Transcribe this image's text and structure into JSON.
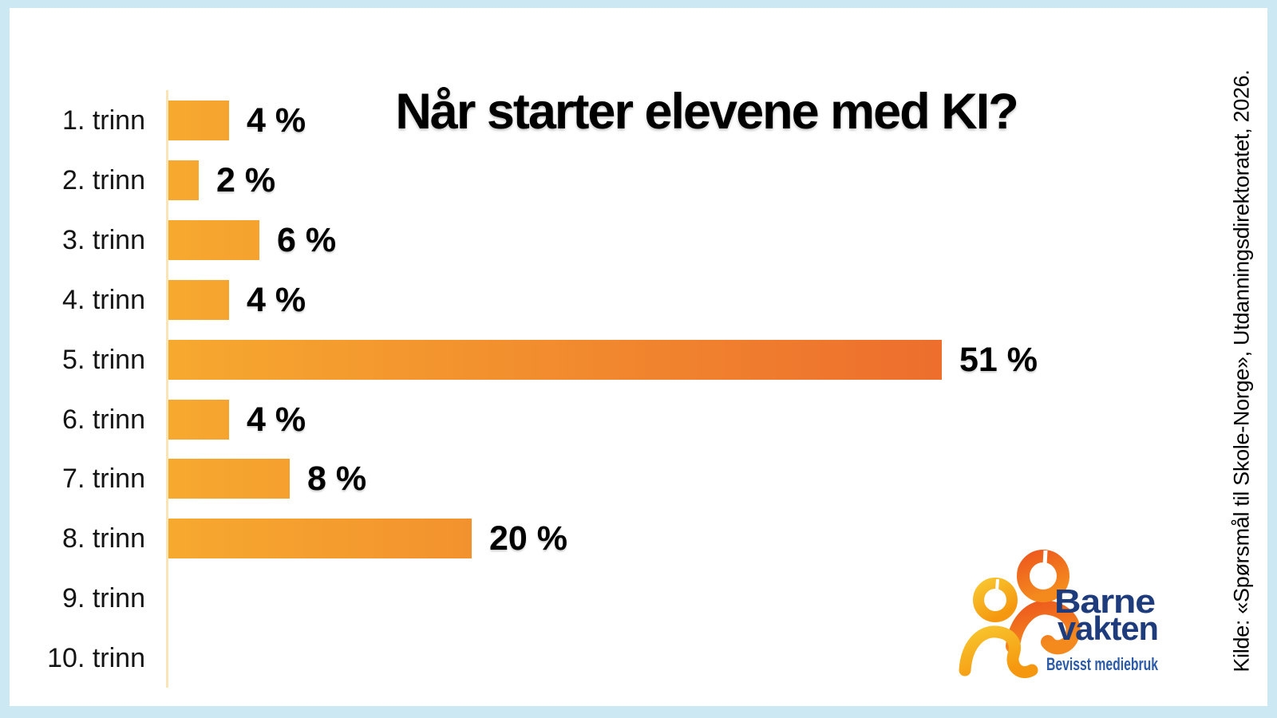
{
  "title": "Når starter elevene med KI?",
  "source": "Kilde: «Spørsmål til Skole-Norge», Utdanningsdirektoratet, 2026.",
  "logo": {
    "name1": "Barne",
    "name2": "vakten",
    "tagline": "Bevisst mediebruk"
  },
  "colors": {
    "frame_blue": "#CBE8F3",
    "panel_white": "#FFFFFF",
    "axis_pale": "#FBE4B6",
    "bar_gradient_start": "#F6A92F",
    "bar_gradient_end": "#ED6E2D",
    "text_black": "#000000",
    "logo_navy": "#1E3C7C",
    "logo_blue": "#2B5AA8",
    "logo_yellow_light": "#F8C52F",
    "logo_yellow_dark": "#F5980F",
    "logo_orange_light": "#ED5A1E",
    "logo_orange_dark": "#F48A1E"
  },
  "chart_data": {
    "type": "bar",
    "orientation": "horizontal",
    "title": "Når starter elevene med KI?",
    "categories": [
      "1. trinn",
      "2. trinn",
      "3. trinn",
      "4. trinn",
      "5. trinn",
      "6. trinn",
      "7. trinn",
      "8. trinn",
      "9. trinn",
      "10. trinn"
    ],
    "values": [
      4,
      2,
      6,
      4,
      51,
      4,
      8,
      20,
      0,
      0
    ],
    "value_labels": [
      "4 %",
      "2 %",
      "6 %",
      "4 %",
      "51 %",
      "4 %",
      "8 %",
      "20 %",
      "",
      ""
    ],
    "unit": "%",
    "xlabel": "",
    "ylabel": "",
    "xlim": [
      0,
      51
    ],
    "grid": false,
    "legend": false,
    "bar_color": "gradient #F6A92F → #ED6E2D",
    "source": "Kilde: «Spørsmål til Skole-Norge», Utdanningsdirektoratet, 2026."
  }
}
